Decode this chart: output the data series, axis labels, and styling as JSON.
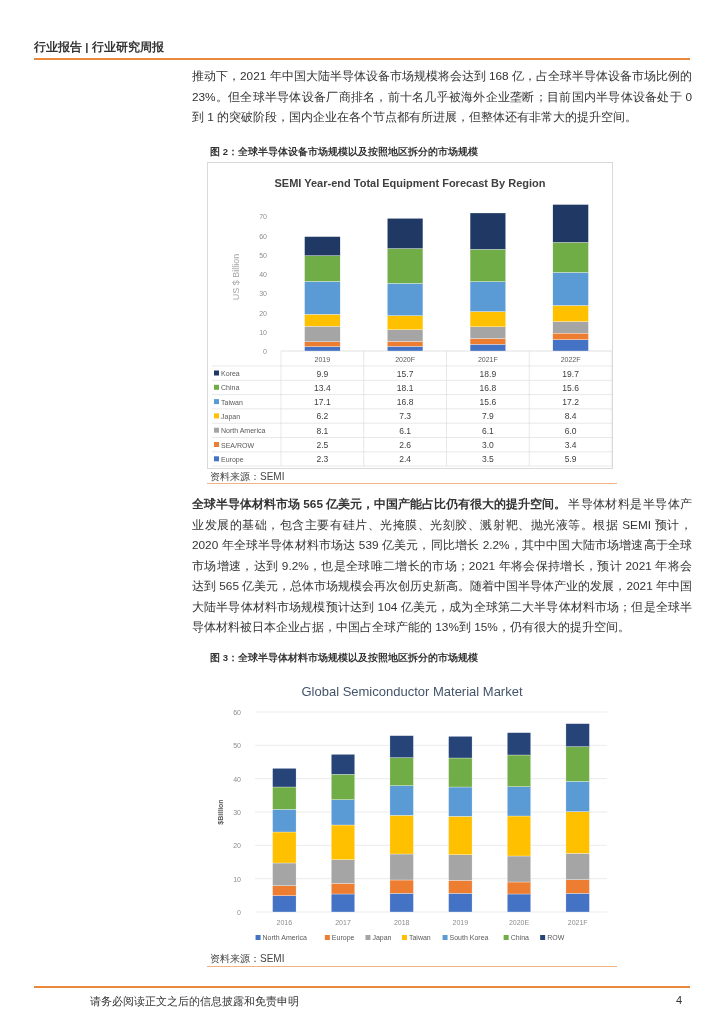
{
  "chart_data": [
    {
      "type": "bar",
      "title": "SEMI Year-end Total Equipment Forecast By Region",
      "ylabel": "US $ Billion",
      "stacked": true,
      "legend": "bottom",
      "categories": [
        "2019",
        "2020F",
        "2021F",
        "2022F"
      ],
      "ylim": [
        0,
        77
      ],
      "yticks": [
        0,
        10,
        20,
        30,
        40,
        50,
        60,
        70
      ],
      "series": [
        {
          "name": "Europe",
          "color": "#4472c4",
          "values": [
            2.3,
            2.4,
            3.5,
            5.9
          ],
          "value_labels": [
            "2.3",
            "2.4",
            "3.5",
            "5.9"
          ]
        },
        {
          "name": "SEA/ROW",
          "color": "#ed7d31",
          "values": [
            2.5,
            2.6,
            3.0,
            3.4
          ],
          "value_labels": [
            "2.5",
            "2.6",
            "3.0",
            "3.4"
          ]
        },
        {
          "name": "North America",
          "color": "#a5a5a5",
          "values": [
            8.1,
            6.1,
            6.1,
            6.0
          ],
          "value_labels": [
            "8.1",
            "6.1",
            "6.1",
            "6.0"
          ]
        },
        {
          "name": "Japan",
          "color": "#ffc000",
          "values": [
            6.2,
            7.3,
            7.9,
            8.4
          ],
          "value_labels": [
            "6.2",
            "7.3",
            "7.9",
            "8.4"
          ]
        },
        {
          "name": "Taiwan",
          "color": "#5b9bd5",
          "values": [
            17.1,
            16.8,
            15.6,
            17.2
          ],
          "value_labels": [
            "17.1",
            "16.8",
            "15.6",
            "17.2"
          ]
        },
        {
          "name": "China",
          "color": "#70ad47",
          "values": [
            13.4,
            18.1,
            16.8,
            15.6
          ],
          "value_labels": [
            "13.4",
            "18.1",
            "16.8",
            "15.6"
          ]
        },
        {
          "name": "Korea",
          "color": "#1f3864",
          "values": [
            9.9,
            15.7,
            18.9,
            19.7
          ],
          "value_labels": [
            "9.9",
            "15.7",
            "18.9",
            "19.7"
          ]
        }
      ],
      "annotations": [
        "行业报告 | 行业研究周报",
        "推动下，2021 年中国大陆半导体设备市场规模将会达到 168 亿，占全球半导体设备市场比例的 23%。但全球半导体设备厂商排名，前十名几乎被海外企业垄断；目前国内半导体设备处于 0 到 1 的突破阶段，国内企业在各个节点都有所进展，但整体还有非常大的提升空间。",
        "图 2：全球半导体设备市场规模以及按照地区拆分的市场规模",
        "资料来源：SEMI"
      ]
    },
    {
      "type": "bar",
      "title": "Global Semiconductor Material Market",
      "ylabel": "$Billion",
      "stacked": true,
      "legend": "bottom",
      "grid": "y",
      "categories": [
        "2016",
        "2017",
        "2018",
        "2019",
        "2020E",
        "2021F"
      ],
      "ylim": [
        0,
        60
      ],
      "yticks": [
        0,
        10,
        20,
        30,
        40,
        50,
        60
      ],
      "series": [
        {
          "name": "North America",
          "color": "#4472c4",
          "values": [
            4.9,
            5.4,
            5.6,
            5.6,
            5.4,
            5.6
          ]
        },
        {
          "name": "Europe",
          "color": "#ed7d31",
          "values": [
            3.0,
            3.2,
            4.0,
            3.9,
            3.6,
            4.1
          ]
        },
        {
          "name": "Japan",
          "color": "#a5a5a5",
          "values": [
            6.8,
            7.1,
            7.8,
            7.7,
            7.8,
            7.9
          ]
        },
        {
          "name": "Taiwan",
          "color": "#ffc000",
          "values": [
            9.3,
            10.4,
            11.6,
            11.5,
            12.0,
            12.5
          ]
        },
        {
          "name": "South Korea",
          "color": "#5b9bd5",
          "values": [
            6.8,
            7.6,
            8.9,
            8.8,
            8.8,
            9.1
          ]
        },
        {
          "name": "China",
          "color": "#70ad47",
          "values": [
            6.7,
            7.6,
            8.4,
            8.7,
            9.5,
            10.4
          ]
        },
        {
          "name": "ROW",
          "color": "#264478",
          "values": [
            5.6,
            6.0,
            6.6,
            6.5,
            6.7,
            6.9
          ]
        }
      ],
      "annotations": [
        "全球半导体材料市场 565 亿美元，中国产能占比仍有很大的提升空间。",
        "半导体材料是半导体产业发展的基础，包含主要有硅片、光掩膜、光刻胶、溅射靶、抛光液等。根据 SEMI 预计，2020 年全球半导体材料市场达 539 亿美元，同比增长 2.2%，其中中国大陆市场增速高于全球市场增速，达到 9.2%，也是全球唯二增长的市场；2021 年将会保持增长，预计 2021 年将会达到 565 亿美元，总体市场规模会再次创历史新高。随着中国半导体产业的发展，2021 年中国大陆半导体材料市场规模预计达到 104 亿美元，成为全球第二大半导体材料市场；但是全球半导体材料被日本企业占据，中国占全球产能的 13%到 15%，仍有很大的提升空间。",
        "图 3：全球半导体材料市场规模以及按照地区拆分的市场规模",
        "资料来源：SEMI",
        "请务必阅读正文之后的信息披露和免责申明",
        "4"
      ]
    }
  ]
}
